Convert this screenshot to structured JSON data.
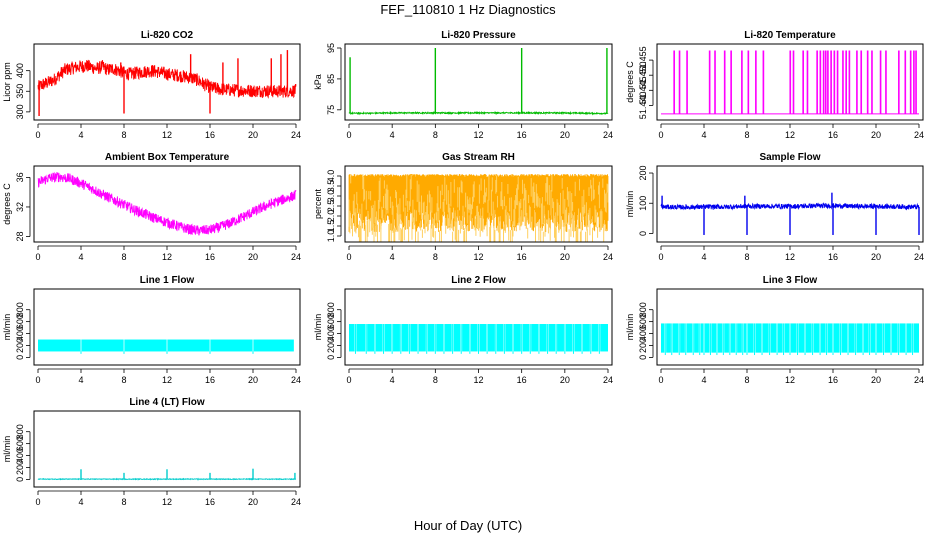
{
  "figure": {
    "title": "FEF_110810  1 Hz Diagnostics",
    "xlabel": "Hour of Day (UTC)"
  },
  "chart_data": [
    {
      "type": "line",
      "title": "Li-820 CO2",
      "ylabel": "Licor ppm",
      "color": "#ff0000",
      "xlim": [
        0,
        24
      ],
      "ylim": [
        290,
        455
      ],
      "xticks": [
        0,
        4,
        8,
        12,
        16,
        20,
        24
      ],
      "yticks": [
        300,
        350,
        400
      ],
      "series": [
        {
          "x": [
            0,
            0.3,
            0.6,
            1,
            1.5,
            2,
            2.5,
            3,
            3.5,
            4,
            4.5,
            5,
            5.5,
            6,
            6.5,
            7,
            7.5,
            8,
            8.5,
            9,
            9.5,
            10,
            10.5,
            11,
            11.5,
            12,
            12.5,
            13,
            13.5,
            14,
            14.5,
            15,
            15.5,
            16,
            16.5,
            17,
            17.5,
            18,
            19,
            20,
            21,
            22,
            23,
            24
          ],
          "y": [
            360,
            365,
            368,
            372,
            378,
            390,
            402,
            405,
            408,
            410,
            412,
            408,
            405,
            410,
            402,
            405,
            400,
            395,
            392,
            394,
            396,
            398,
            400,
            398,
            395,
            392,
            390,
            389,
            386,
            384,
            381,
            375,
            366,
            360,
            357,
            355,
            354,
            353,
            352,
            351,
            351,
            350,
            350,
            352
          ]
        }
      ],
      "noise": 16,
      "spikes": [
        [
          0.1,
          290
        ],
        [
          8.0,
          296
        ],
        [
          16.0,
          296
        ],
        [
          7.7,
          420
        ],
        [
          14.2,
          440
        ],
        [
          17.2,
          420
        ],
        [
          18.6,
          430
        ],
        [
          21.7,
          430
        ],
        [
          22.6,
          440
        ],
        [
          23.2,
          450
        ]
      ]
    },
    {
      "type": "line",
      "title": "Li-820 Pressure",
      "ylabel": "kPa",
      "color": "#00bb00",
      "xlim": [
        0,
        24
      ],
      "ylim": [
        73,
        95
      ],
      "xticks": [
        0,
        4,
        8,
        12,
        16,
        20,
        24
      ],
      "yticks": [
        75,
        85,
        95
      ],
      "series": [
        {
          "x": [
            0,
            2,
            4,
            6,
            8,
            10,
            12,
            14,
            16,
            18,
            20,
            22,
            24
          ],
          "y": [
            73.9,
            73.9,
            74,
            74,
            74,
            74,
            74,
            74,
            74,
            74,
            74,
            73.9,
            73.8
          ]
        }
      ],
      "noise": 0.2,
      "spikes": [
        [
          0.1,
          92
        ],
        [
          8.0,
          95
        ],
        [
          16.0,
          95
        ],
        [
          23.9,
          95
        ]
      ]
    },
    {
      "type": "line",
      "title": "Li-820 Temperature",
      "ylabel": "degrees C",
      "color": "#ff00ff",
      "xlim": [
        0,
        24
      ],
      "ylim": [
        51.4365,
        51.459
      ],
      "xticks": [
        0,
        4,
        8,
        12,
        16,
        20,
        24
      ],
      "yticks": [
        51.44,
        51.445,
        51.45,
        51.455
      ],
      "ytickLabels": [
        "51.440",
        "51.445",
        "51.450",
        "51.455"
      ],
      "baseline": 51.4372,
      "top": 51.458,
      "switch_times": [
        1.2,
        1.7,
        2.4,
        4.5,
        5.0,
        5.9,
        6.5,
        7.5,
        8.1,
        8.8,
        9.5,
        12.0,
        12.3,
        13.2,
        13.6,
        14.5,
        14.8,
        15.1,
        15.3,
        15.5,
        15.8,
        16.1,
        16.4,
        16.9,
        17.2,
        17.5,
        18.2,
        18.6,
        19.2,
        19.6,
        20.4,
        20.9,
        22.1,
        22.7,
        23.2,
        23.5,
        23.7
      ]
    },
    {
      "type": "line",
      "title": "Ambient Box Temperature",
      "ylabel": "degrees C",
      "color": "#ff00ff",
      "xlim": [
        0,
        24
      ],
      "ylim": [
        27.8,
        37
      ],
      "xticks": [
        0,
        4,
        8,
        12,
        16,
        20,
        24
      ],
      "yticks": [
        28,
        32,
        36
      ],
      "series": [
        {
          "x": [
            0,
            1,
            2,
            3,
            4,
            5,
            6,
            7,
            8,
            9,
            10,
            11,
            12,
            13,
            14,
            15,
            16,
            17,
            18,
            19,
            20,
            21,
            22,
            23,
            24
          ],
          "y": [
            35.3,
            35.9,
            36.1,
            35.8,
            35.2,
            34.5,
            33.7,
            33,
            32.3,
            31.6,
            31,
            30.4,
            29.9,
            29.4,
            29,
            28.8,
            28.9,
            29.3,
            29.9,
            30.6,
            31.3,
            32,
            32.6,
            33.1,
            33.6
          ]
        }
      ],
      "noise": 0.7
    },
    {
      "type": "line",
      "title": "Gas Stream RH",
      "ylabel": "percent",
      "color": "#ffaa00",
      "color2": "#ffd060",
      "xlim": [
        0,
        24
      ],
      "ylim": [
        0.9,
        4.3
      ],
      "xticks": [
        0,
        4,
        8,
        12,
        16,
        20,
        24
      ],
      "yticks": [
        1,
        1.5,
        2,
        2.5,
        3,
        3.5,
        4
      ],
      "ytickLabels": [
        "1.0",
        "1.5",
        "2.0",
        "2.5",
        "3.0",
        "3.5",
        "4.0"
      ],
      "band": [
        1.2,
        4.1
      ]
    },
    {
      "type": "line",
      "title": "Sample Flow",
      "ylabel": "ml/min",
      "color": "#0000ee",
      "xlim": [
        0,
        24
      ],
      "ylim": [
        -15,
        210
      ],
      "xticks": [
        0,
        4,
        8,
        12,
        16,
        20,
        24
      ],
      "yticks": [
        0,
        100,
        200
      ],
      "series": [
        {
          "x": [
            0,
            2,
            4,
            6,
            8,
            10,
            12,
            14,
            16,
            18,
            20,
            22,
            24
          ],
          "y": [
            88,
            87,
            88,
            88,
            90,
            90,
            90,
            91,
            92,
            90,
            90,
            89,
            88
          ]
        }
      ],
      "noise": 8,
      "spikes": [
        [
          0.1,
          125
        ],
        [
          4.0,
          -5
        ],
        [
          8.0,
          -5
        ],
        [
          7.8,
          125
        ],
        [
          12.0,
          -5
        ],
        [
          16.0,
          -5
        ],
        [
          15.9,
          135
        ],
        [
          20.0,
          -5
        ],
        [
          24.0,
          -5
        ]
      ]
    },
    {
      "type": "area",
      "title": "Line 1 Flow",
      "ylabel": "ml/min",
      "color": "#00ffff",
      "xlim": [
        0,
        24
      ],
      "ylim": [
        -60,
        1080
      ],
      "xticks": [
        0,
        4,
        8,
        12,
        16,
        20,
        24
      ],
      "yticks": [
        0,
        200,
        400,
        600,
        800
      ],
      "band": [
        100,
        300
      ],
      "gaps": [
        4,
        8,
        12,
        16,
        20
      ],
      "end": 23.8
    },
    {
      "type": "area",
      "title": "Line 2 Flow",
      "ylabel": "ml/min",
      "color": "#00ffff",
      "xlim": [
        0,
        24
      ],
      "ylim": [
        -60,
        1080
      ],
      "xticks": [
        0,
        4,
        8,
        12,
        16,
        20,
        24
      ],
      "yticks": [
        0,
        200,
        400,
        600,
        800
      ],
      "band": [
        100,
        560
      ],
      "gaps": [
        0.6,
        1.6,
        2.4,
        3.2,
        4,
        4.8,
        5.6,
        6.4,
        7.2,
        8,
        8.8,
        9.6,
        10.4,
        11.2,
        12,
        12.8,
        13.6,
        14.4,
        15.2,
        16,
        16.8,
        17.6,
        18.4,
        19.2,
        20,
        20.8,
        21.6,
        22.4,
        23.2
      ],
      "end": 24
    },
    {
      "type": "area",
      "title": "Line 3 Flow",
      "ylabel": "ml/min",
      "color": "#00ffff",
      "xlim": [
        0,
        24
      ],
      "ylim": [
        -60,
        1080
      ],
      "xticks": [
        0,
        4,
        8,
        12,
        16,
        20,
        24
      ],
      "yticks": [
        0,
        200,
        400,
        600,
        800
      ],
      "band": [
        80,
        570
      ],
      "gaps": [
        0.4,
        1.0,
        1.7,
        2.3,
        3,
        3.6,
        4,
        4.6,
        5.2,
        5.8,
        6.4,
        7,
        7.6,
        8,
        8.7,
        9.4,
        10.1,
        10.8,
        11.4,
        12,
        12.7,
        13.4,
        14.1,
        14.8,
        15.4,
        16,
        16.7,
        17.4,
        18.1,
        18.8,
        19.4,
        20,
        20.7,
        21.4,
        22.1,
        22.8,
        23.4
      ],
      "end": 24
    },
    {
      "type": "line",
      "title": "Line 4 (LT) Flow",
      "ylabel": "ml/min",
      "color": "#00cccc",
      "xlim": [
        0,
        24
      ],
      "ylim": [
        -60,
        1080
      ],
      "xticks": [
        0,
        4,
        8,
        12,
        16,
        20,
        24
      ],
      "yticks": [
        0,
        200,
        400,
        600,
        800
      ],
      "series": [
        {
          "x": [
            0,
            24
          ],
          "y": [
            5,
            5
          ]
        }
      ],
      "noise": 6,
      "spikes": [
        [
          4.0,
          170
        ],
        [
          8.0,
          110
        ],
        [
          12.0,
          170
        ],
        [
          16.0,
          110
        ],
        [
          20.0,
          180
        ],
        [
          23.9,
          110
        ]
      ]
    }
  ]
}
